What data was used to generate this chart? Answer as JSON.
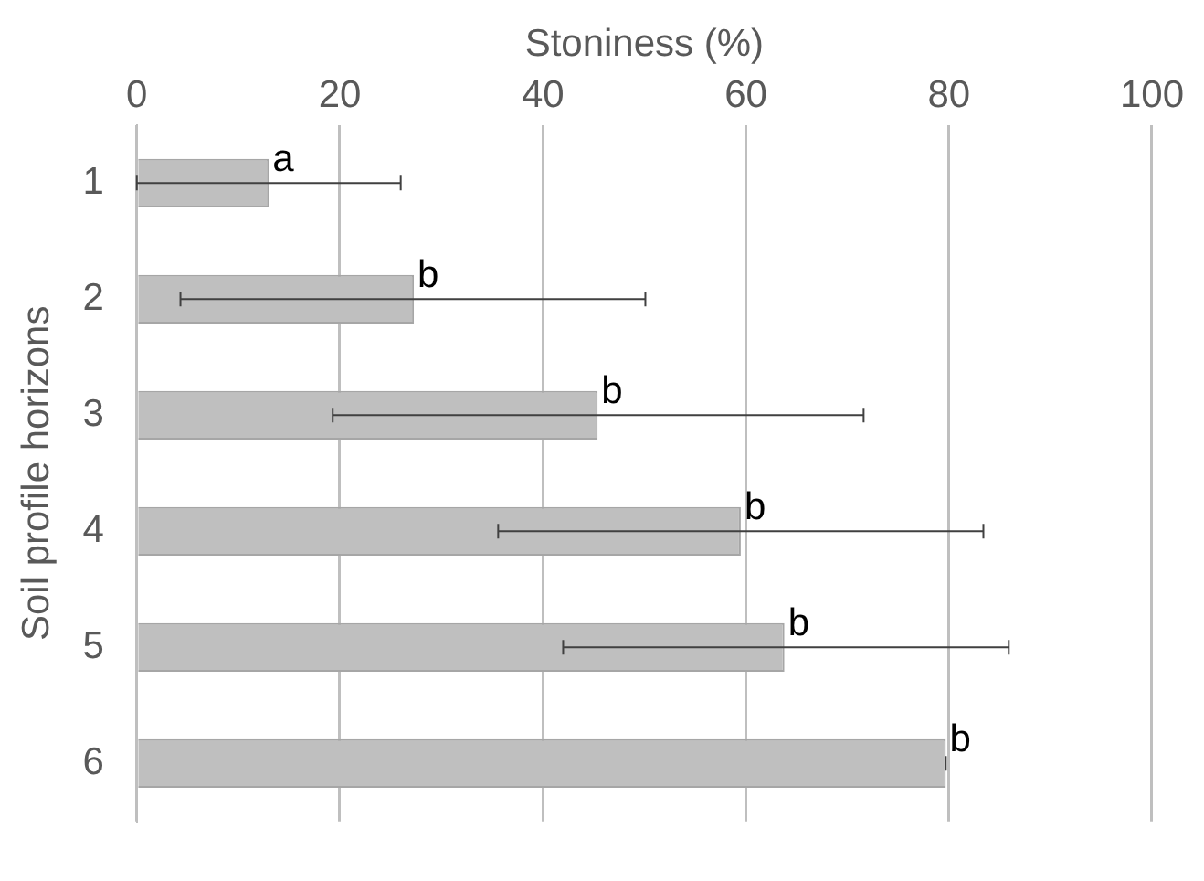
{
  "chart_data": {
    "type": "bar",
    "orientation": "horizontal",
    "xlabel": "Stoniness (%)",
    "ylabel": "Soil profile horizons",
    "categories": [
      "1",
      "2",
      "3",
      "4",
      "5",
      "6"
    ],
    "values": [
      13,
      27.3,
      45.4,
      59.5,
      63.8,
      79.7
    ],
    "errors": [
      [
        0,
        26
      ],
      [
        4.3,
        50.1
      ],
      [
        19.3,
        71.6
      ],
      [
        35.6,
        83.4
      ],
      [
        42,
        85.9
      ],
      [
        79.7,
        79.7
      ]
    ],
    "color": "#bfbfbf",
    "xlim": [
      0,
      100
    ],
    "xticks": [
      0,
      20,
      40,
      60,
      80,
      100
    ],
    "grid": "x",
    "legend": false,
    "annotations": [
      {
        "text": "a",
        "x": 13,
        "y": "1"
      },
      {
        "text": "b",
        "x": 27.3,
        "y": "2"
      },
      {
        "text": "b",
        "x": 45.4,
        "y": "3"
      },
      {
        "text": "b",
        "x": 59.5,
        "y": "4"
      },
      {
        "text": "b",
        "x": 63.8,
        "y": "5"
      },
      {
        "text": "b",
        "x": 79.7,
        "y": "6"
      }
    ]
  }
}
